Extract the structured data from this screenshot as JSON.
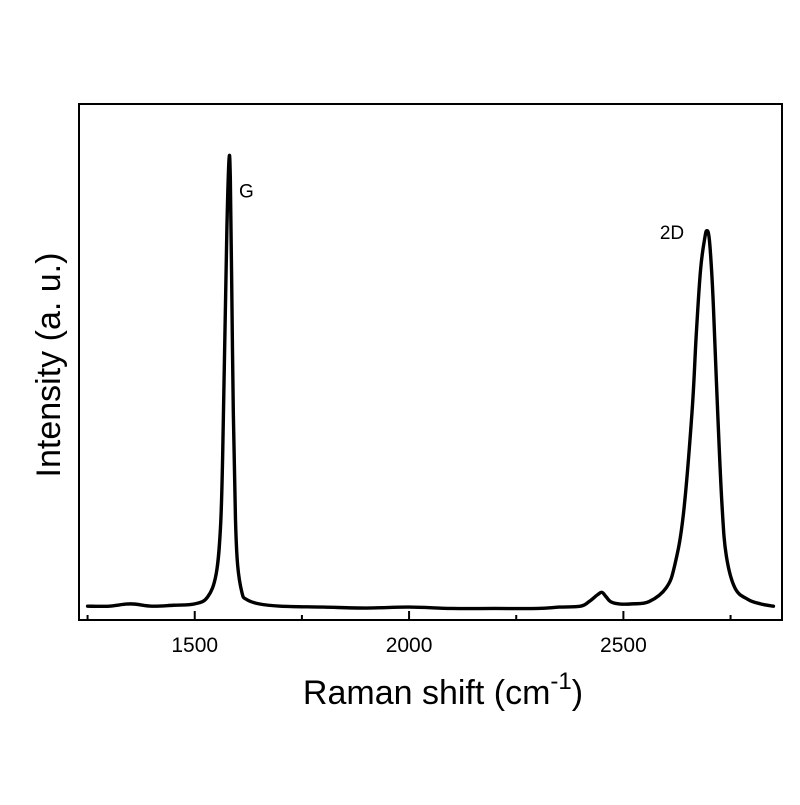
{
  "chart_data": {
    "type": "line",
    "title": "",
    "xlabel": "Raman shift (cm",
    "xlabel_sup": "-1",
    "xlabel_close": ")",
    "ylabel": "Intensity (a. u.)",
    "xlim": [
      1230,
      2870
    ],
    "ylim": [
      0,
      1.12
    ],
    "x_ticks": [
      1500,
      2000,
      2500
    ],
    "x_tick_labels": [
      "1500",
      "2000",
      "2500"
    ],
    "x_minor_ticks": [
      1250,
      1750,
      2250,
      2750
    ],
    "y_ticks_visible": false,
    "grid": false,
    "legend": "none",
    "line_color": "#000000",
    "annotations": [
      {
        "text": "G",
        "x": 1580,
        "y": 1.0
      },
      {
        "text": "2D",
        "x": 2690,
        "y": 0.86
      }
    ],
    "series": [
      {
        "x": [
          1250,
          1300,
          1350,
          1400,
          1450,
          1500,
          1530,
          1550,
          1560,
          1565,
          1570,
          1575,
          1580,
          1583,
          1586,
          1590,
          1595,
          1600,
          1610,
          1620,
          1650,
          1700,
          1800,
          1900,
          2000,
          2100,
          2200,
          2300,
          2350,
          2400,
          2420,
          2440,
          2450,
          2460,
          2470,
          2490,
          2520,
          2560,
          2600,
          2620,
          2640,
          2660,
          2670,
          2680,
          2690,
          2695,
          2700,
          2705,
          2710,
          2720,
          2730,
          2740,
          2760,
          2790,
          2820,
          2850
        ],
        "y": [
          0.03,
          0.03,
          0.035,
          0.03,
          0.032,
          0.035,
          0.05,
          0.1,
          0.2,
          0.35,
          0.6,
          0.85,
          1.0,
          0.96,
          0.75,
          0.45,
          0.22,
          0.12,
          0.06,
          0.045,
          0.035,
          0.03,
          0.028,
          0.026,
          0.028,
          0.025,
          0.025,
          0.025,
          0.028,
          0.03,
          0.04,
          0.055,
          0.06,
          0.05,
          0.04,
          0.035,
          0.035,
          0.04,
          0.07,
          0.12,
          0.23,
          0.45,
          0.62,
          0.76,
          0.83,
          0.845,
          0.83,
          0.77,
          0.68,
          0.45,
          0.25,
          0.14,
          0.07,
          0.045,
          0.035,
          0.03
        ]
      }
    ]
  }
}
